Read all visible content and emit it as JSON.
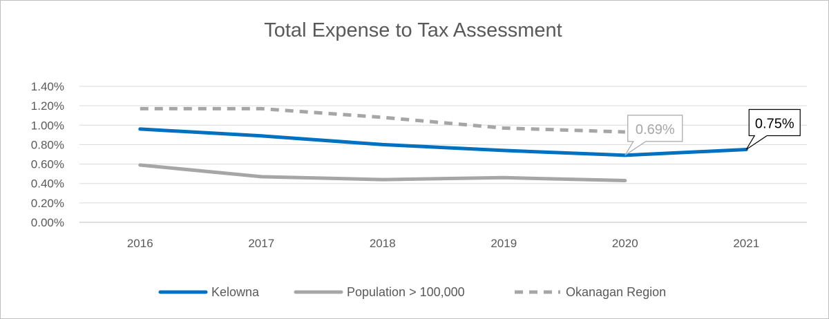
{
  "chart_data": {
    "type": "line",
    "title": "Total Expense to Tax Assessment",
    "xlabel": "",
    "ylabel": "",
    "categories": [
      "2016",
      "2017",
      "2018",
      "2019",
      "2020",
      "2021"
    ],
    "ylim": [
      0,
      1.4
    ],
    "yticks": [
      "0.00%",
      "0.20%",
      "0.40%",
      "0.60%",
      "0.80%",
      "1.00%",
      "1.20%",
      "1.40%"
    ],
    "grid": true,
    "legend": "bottom",
    "series": [
      {
        "name": "Kelowna",
        "values": [
          0.96,
          0.89,
          0.8,
          0.74,
          0.69,
          0.75
        ],
        "color": "#0070C0",
        "style": "solid"
      },
      {
        "name": "Population > 100,000",
        "values": [
          0.59,
          0.47,
          0.44,
          0.46,
          0.43,
          null
        ],
        "color": "#A6A6A6",
        "style": "solid"
      },
      {
        "name": "Okanagan Region",
        "values": [
          1.17,
          1.17,
          1.08,
          0.97,
          0.93,
          null
        ],
        "color": "#A6A6A6",
        "style": "dashed"
      }
    ],
    "annotations": [
      {
        "label": "0.69%",
        "category": "2020",
        "series": "Kelowna",
        "style": "gray"
      },
      {
        "label": "0.75%",
        "category": "2021",
        "series": "Kelowna",
        "style": "black"
      }
    ]
  }
}
